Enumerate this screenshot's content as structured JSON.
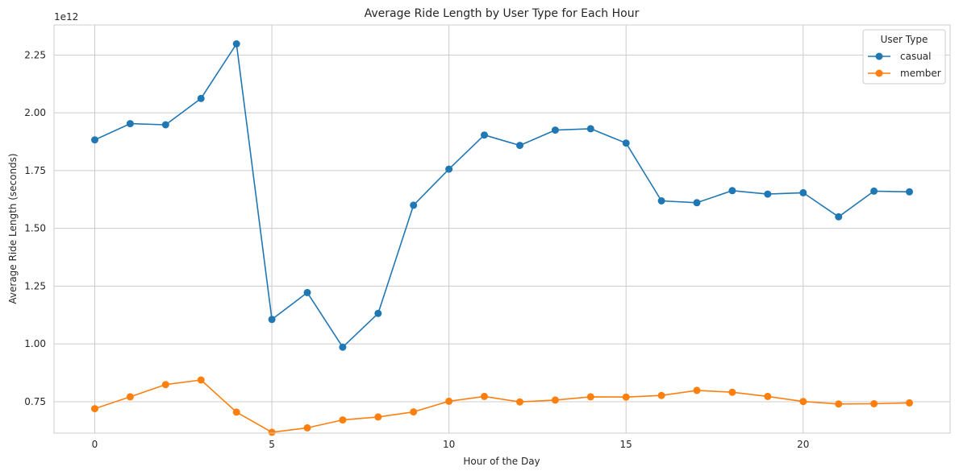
{
  "chart_data": {
    "type": "line",
    "title": "Average Ride Length by User Type for Each Hour",
    "xlabel": "Hour of the Day",
    "ylabel": "Average Ride Length (seconds)",
    "y_offset_label": "1e12",
    "xlim": [
      -1.15,
      24.15
    ],
    "ylim": [
      0.614,
      2.38
    ],
    "x_ticks": [
      0,
      5,
      10,
      15,
      20
    ],
    "y_ticks": [
      0.75,
      1.0,
      1.25,
      1.5,
      1.75,
      2.0,
      2.25
    ],
    "y_tick_labels": [
      "0.75",
      "1.00",
      "1.25",
      "1.50",
      "1.75",
      "2.00",
      "2.25"
    ],
    "grid": true,
    "legend": {
      "title": "User Type",
      "position": "top-right"
    },
    "x": [
      0,
      1,
      2,
      3,
      4,
      5,
      6,
      7,
      8,
      9,
      10,
      11,
      12,
      13,
      14,
      15,
      16,
      17,
      18,
      19,
      20,
      21,
      22,
      23
    ],
    "series": [
      {
        "name": "casual",
        "color": "#1f77b4",
        "values": [
          1.883,
          1.953,
          1.948,
          2.062,
          2.298,
          1.106,
          1.222,
          0.986,
          1.132,
          1.6,
          1.756,
          1.904,
          1.859,
          1.925,
          1.931,
          1.869,
          1.619,
          1.611,
          1.663,
          1.648,
          1.654,
          1.55,
          1.661,
          1.658
        ]
      },
      {
        "name": "member",
        "color": "#ff7f0e",
        "values": [
          0.72,
          0.771,
          0.824,
          0.844,
          0.705,
          0.618,
          0.637,
          0.671,
          0.684,
          0.706,
          0.752,
          0.773,
          0.749,
          0.757,
          0.771,
          0.77,
          0.777,
          0.799,
          0.791,
          0.773,
          0.751,
          0.74,
          0.741,
          0.745
        ]
      }
    ]
  }
}
